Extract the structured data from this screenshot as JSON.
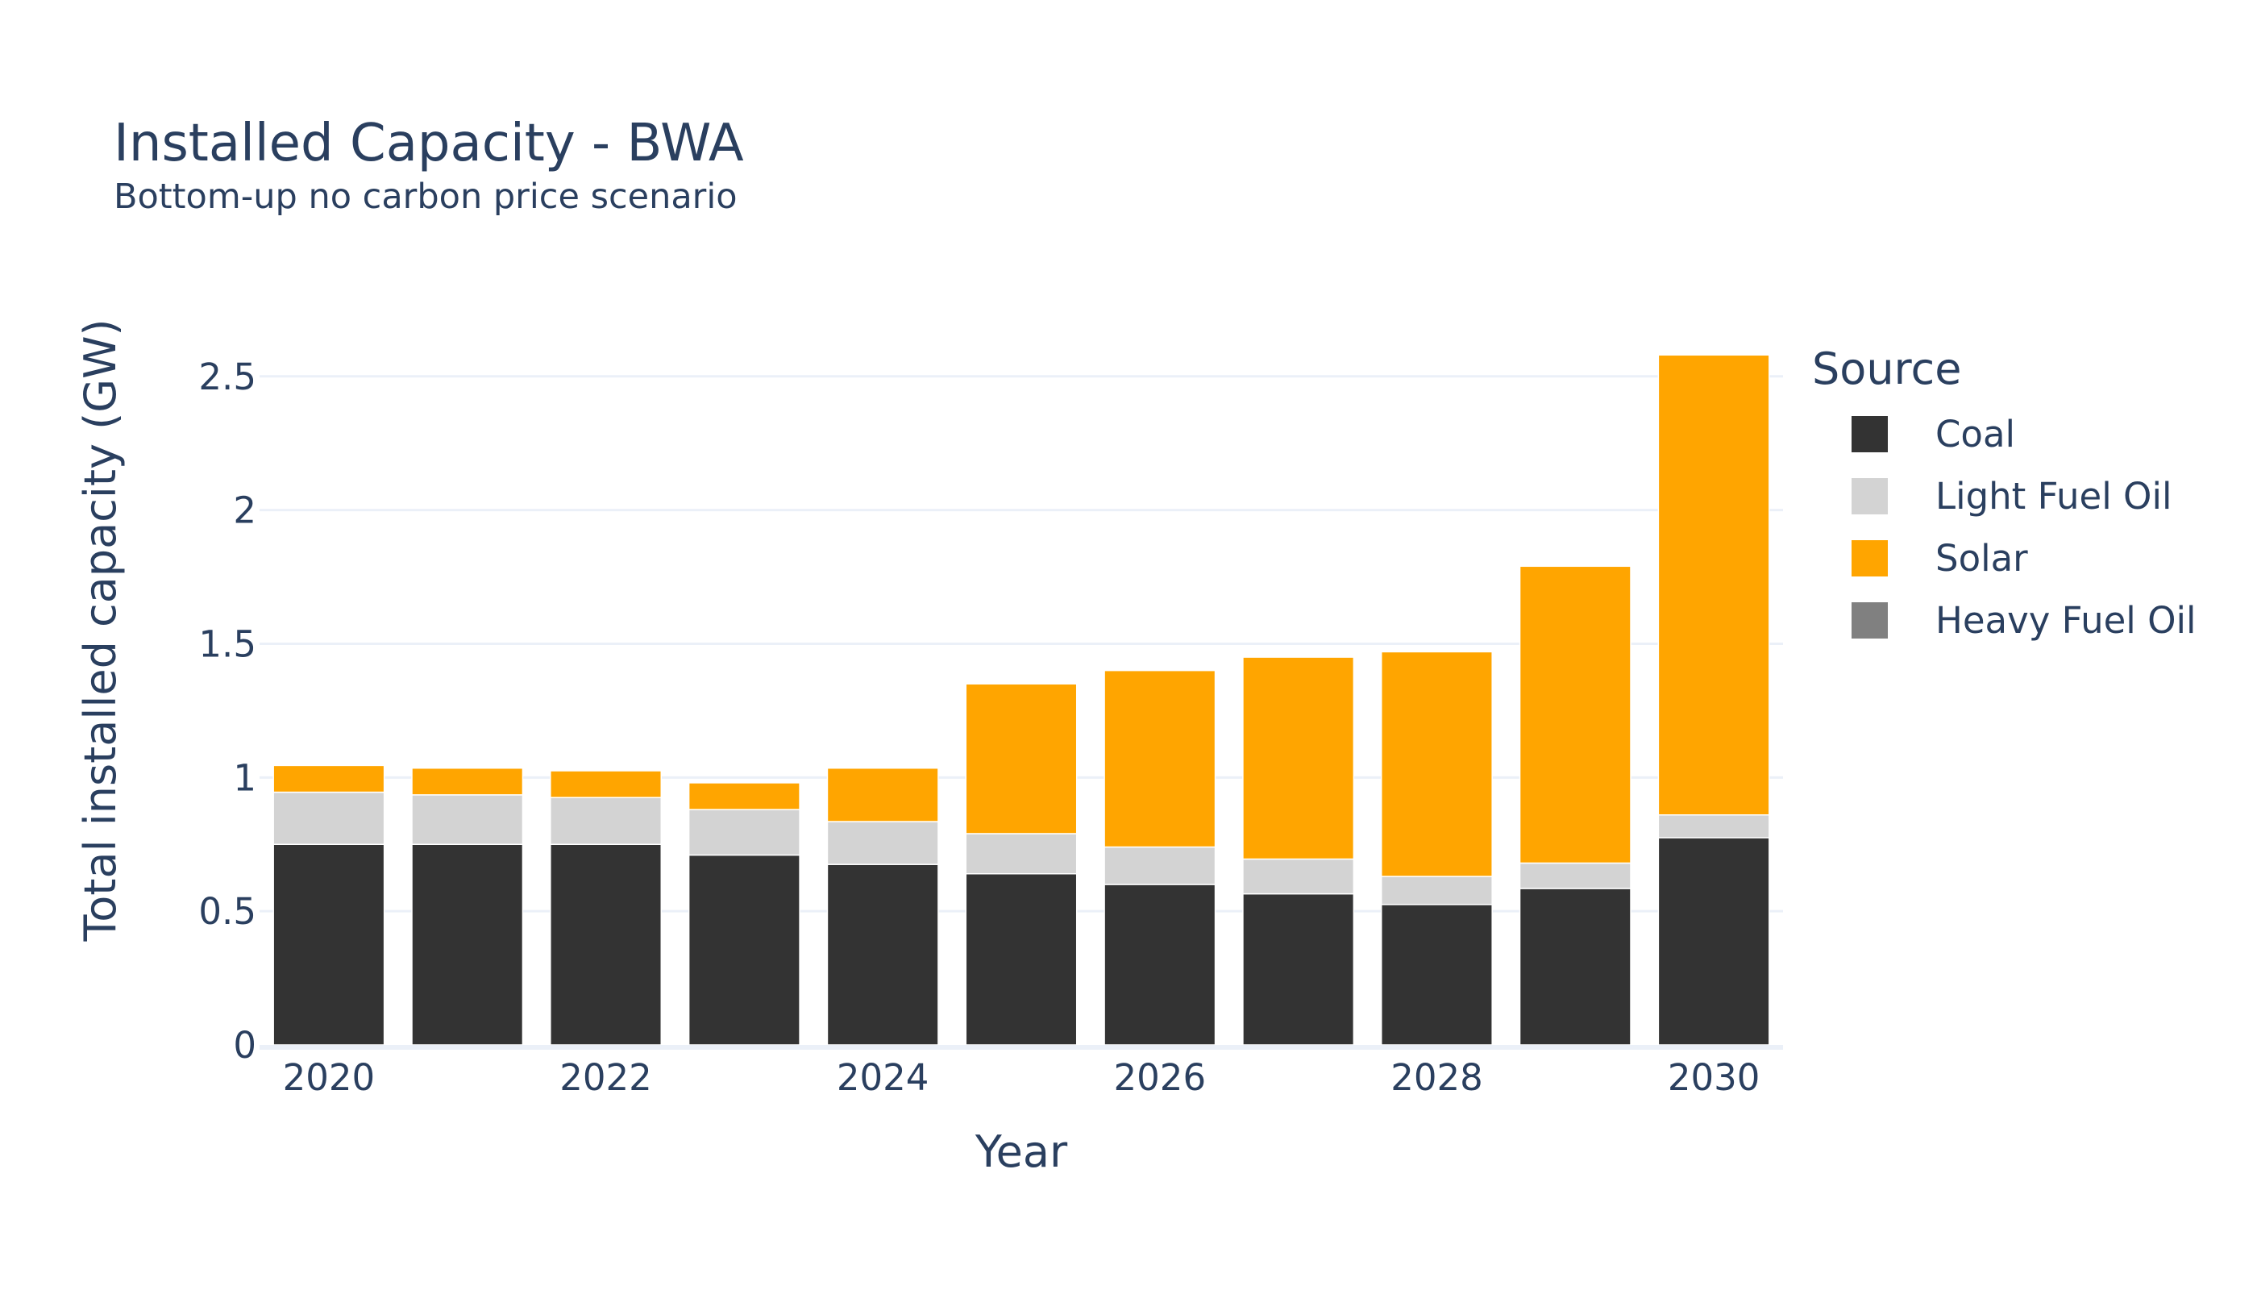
{
  "chart_data": {
    "type": "bar",
    "stacked": true,
    "title": "Installed Capacity - BWA",
    "subtitle": "Bottom-up no carbon price scenario",
    "xlabel": "Year",
    "ylabel": "Total installed capacity (GW)",
    "ylim": [
      0,
      2.62
    ],
    "yticks": [
      0,
      0.5,
      1,
      1.5,
      2,
      2.5
    ],
    "ytick_labels": [
      "0",
      "0.5",
      "1",
      "1.5",
      "2",
      "2.5"
    ],
    "x": [
      2020,
      2021,
      2022,
      2023,
      2024,
      2025,
      2026,
      2027,
      2028,
      2029,
      2030
    ],
    "xticks": [
      2020,
      2022,
      2024,
      2026,
      2028,
      2030
    ],
    "xtick_labels": [
      "2020",
      "2022",
      "2024",
      "2026",
      "2028",
      "2030"
    ],
    "grid": true,
    "legend_title": "Source",
    "legend_position": "right",
    "series": [
      {
        "name": "Coal",
        "color": "#333333",
        "values": [
          0.75,
          0.75,
          0.75,
          0.71,
          0.675,
          0.64,
          0.6,
          0.565,
          0.525,
          0.585,
          0.775
        ]
      },
      {
        "name": "Light Fuel Oil",
        "color": "#d3d3d3",
        "values": [
          0.195,
          0.185,
          0.175,
          0.17,
          0.16,
          0.15,
          0.14,
          0.13,
          0.105,
          0.095,
          0.085
        ]
      },
      {
        "name": "Solar",
        "color": "#ffa500",
        "values": [
          0.1,
          0.1,
          0.1,
          0.1,
          0.2,
          0.56,
          0.66,
          0.755,
          0.84,
          1.11,
          1.72
        ]
      },
      {
        "name": "Heavy Fuel Oil",
        "color": "#808080",
        "values": [
          0,
          0,
          0,
          0,
          0,
          0,
          0,
          0,
          0,
          0,
          0
        ]
      }
    ]
  }
}
